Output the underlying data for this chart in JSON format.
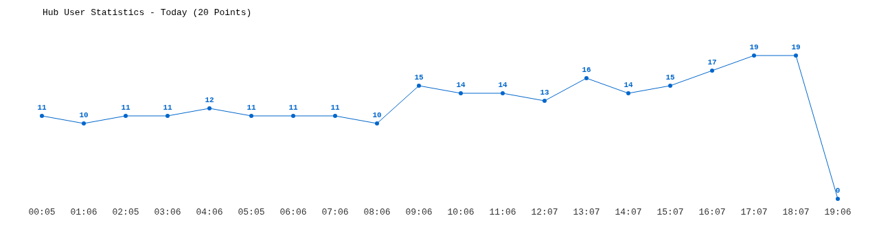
{
  "chart_data": {
    "type": "line",
    "title": "Hub User Statistics - Today (20 Points)",
    "categories": [
      "00:05",
      "01:06",
      "02:05",
      "03:06",
      "04:06",
      "05:05",
      "06:06",
      "07:06",
      "08:06",
      "09:06",
      "10:06",
      "11:06",
      "12:07",
      "13:07",
      "14:07",
      "15:07",
      "16:07",
      "17:07",
      "18:07",
      "19:06"
    ],
    "series": [
      {
        "color": "#0066cc",
        "values": [
          11,
          10,
          11,
          11,
          12,
          11,
          11,
          11,
          10,
          15,
          14,
          14,
          13,
          16,
          14,
          15,
          17,
          19,
          19,
          0
        ]
      }
    ],
    "data_labels": true,
    "marker": "circle",
    "grid": false
  }
}
